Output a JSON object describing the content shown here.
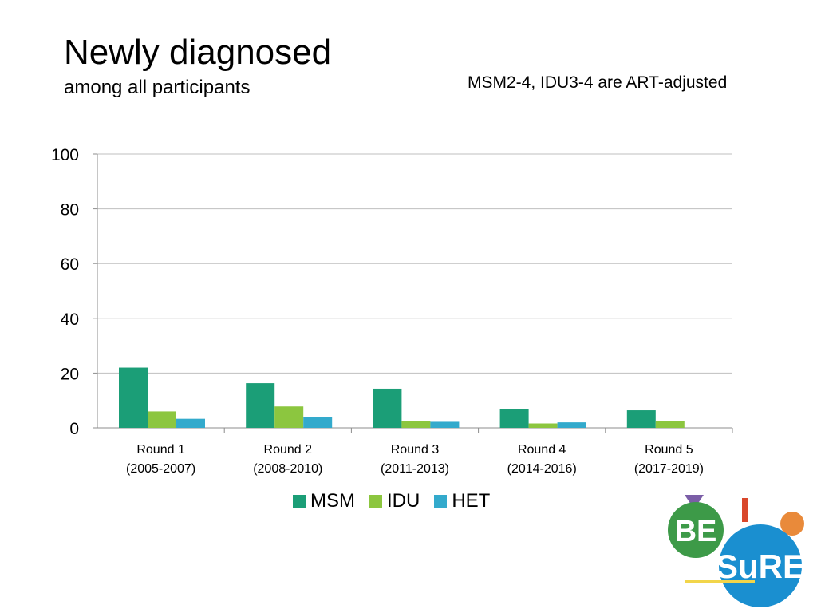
{
  "header": {
    "title": "Newly diagnosed",
    "subtitle": "among all participants",
    "note": "MSM2-4, IDU3-4 are ART-adjusted"
  },
  "chart_data": {
    "type": "bar",
    "title": "Newly diagnosed",
    "subtitle": "among all participants",
    "xlabel": "",
    "ylabel": "",
    "ylim": [
      0,
      100
    ],
    "yticks": [
      0,
      20,
      40,
      60,
      80,
      100
    ],
    "grid": true,
    "legend_position": "bottom",
    "categories": [
      [
        "Round 1",
        "(2005-2007)"
      ],
      [
        "Round 2",
        "(2008-2010)"
      ],
      [
        "Round 3",
        "(2011-2013)"
      ],
      [
        "Round 4",
        "(2014-2016)"
      ],
      [
        "Round 5",
        "(2017-2019)"
      ]
    ],
    "series": [
      {
        "name": "MSM",
        "color": "#1b9e77",
        "values": [
          22,
          16.3,
          14.3,
          6.8,
          6.4
        ]
      },
      {
        "name": "IDU",
        "color": "#8cc63f",
        "values": [
          6,
          7.8,
          2.5,
          1.6,
          2.5
        ]
      },
      {
        "name": "HET",
        "color": "#33aacc",
        "values": [
          3.3,
          4,
          2.2,
          2,
          null
        ]
      }
    ]
  },
  "logo": {
    "text_top": "BE",
    "text_bottom": "SuRE",
    "colors": {
      "green": "#3d9a48",
      "blue": "#1a8fd0",
      "orange": "#e98a3a",
      "purple": "#7b5ea7",
      "yellow": "#f2d54a"
    }
  }
}
